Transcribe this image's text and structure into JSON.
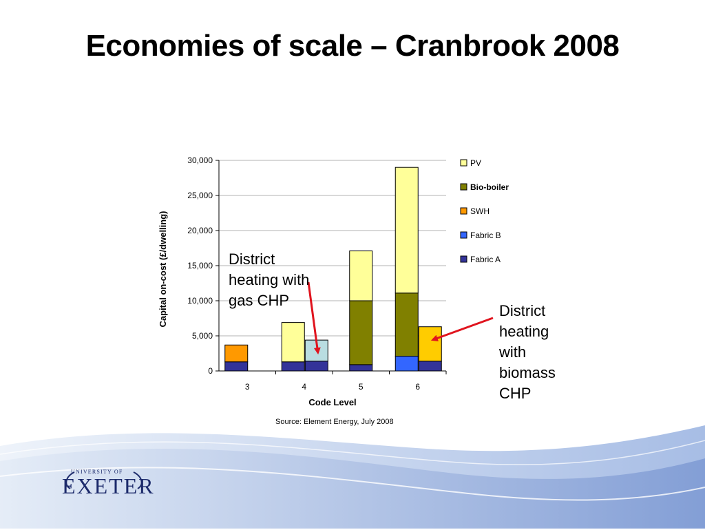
{
  "slide": {
    "title": "Economies of scale – Cranbrook 2008",
    "source": "Source: Element Energy, July 2008",
    "callout_gas": [
      "District",
      "heating with",
      "gas CHP"
    ],
    "callout_biomass": [
      "District",
      "heating",
      "with",
      "biomass",
      "CHP"
    ],
    "logo": {
      "small": "UNIVERSITY OF",
      "main": "EXETER"
    }
  },
  "colors": {
    "PV": "#ffff99",
    "Bio-boiler": "#808000",
    "SWH": "#ff9900",
    "Fabric B": "#3366ff",
    "Fabric A": "#333399",
    "district_gas": "#b9dde1",
    "district_biomass": "#ffcc00",
    "arrow": "#e0141e"
  },
  "chart_data": {
    "type": "bar",
    "stacked": true,
    "xlabel": "Code Level",
    "ylabel": "Capital on-cost (£/dwelling)",
    "ylim": [
      0,
      30000
    ],
    "yticks": [
      0,
      5000,
      10000,
      15000,
      20000,
      25000,
      30000
    ],
    "ytick_labels": [
      "0",
      "5,000",
      "10,000",
      "15,000",
      "20,000",
      "25,000",
      "30,000"
    ],
    "categories": [
      "3",
      "4",
      "5",
      "6"
    ],
    "legend": [
      "PV",
      "Bio-boiler",
      "SWH",
      "Fabric B",
      "Fabric A"
    ],
    "legend_placement": "right",
    "grid": true,
    "bars": [
      {
        "category": "3",
        "slot": "left",
        "stack": [
          {
            "name": "Fabric A",
            "value": 1300
          },
          {
            "name": "SWH",
            "value": 2400
          }
        ]
      },
      {
        "category": "4",
        "slot": "left",
        "stack": [
          {
            "name": "Fabric A",
            "value": 1300
          },
          {
            "name": "PV",
            "value": 5600
          }
        ]
      },
      {
        "category": "4",
        "slot": "right",
        "stack": [
          {
            "name": "Fabric A",
            "value": 1400
          },
          {
            "name": "District heating with gas CHP",
            "value": 3000,
            "color_key": "district_gas"
          }
        ]
      },
      {
        "category": "5",
        "slot": "center",
        "stack": [
          {
            "name": "Fabric A",
            "value": 900
          },
          {
            "name": "Bio-boiler",
            "value": 9100
          },
          {
            "name": "PV",
            "value": 7100
          }
        ]
      },
      {
        "category": "6",
        "slot": "left",
        "stack": [
          {
            "name": "Fabric B",
            "value": 2100
          },
          {
            "name": "Bio-boiler",
            "value": 9000
          },
          {
            "name": "PV",
            "value": 17900
          }
        ]
      },
      {
        "category": "6",
        "slot": "right",
        "stack": [
          {
            "name": "Fabric A",
            "value": 1400
          },
          {
            "name": "District heating with biomass CHP",
            "value": 4900,
            "color_key": "district_biomass"
          }
        ]
      }
    ]
  }
}
